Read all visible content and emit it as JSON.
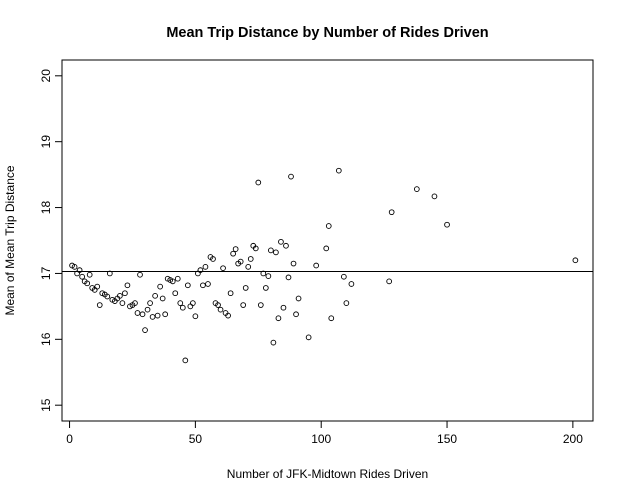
{
  "chart_data": {
    "type": "scatter",
    "title": "Mean Trip Distance by Number of Rides Driven",
    "xlabel": "Number of JFK-Midtown Rides Driven",
    "ylabel": "Mean of Mean Trip Distance",
    "xlim": [
      -3,
      208
    ],
    "ylim": [
      14.76,
      20.24
    ],
    "xticks": [
      0,
      50,
      100,
      150,
      200
    ],
    "yticks": [
      15,
      16,
      17,
      18,
      19,
      20
    ],
    "hline": 17.03,
    "grid": false,
    "legend": "none",
    "marker": "open-circle",
    "points": [
      [
        1,
        17.12
      ],
      [
        2,
        17.1
      ],
      [
        3,
        17.0
      ],
      [
        4,
        17.05
      ],
      [
        5,
        16.95
      ],
      [
        6,
        16.88
      ],
      [
        7,
        16.85
      ],
      [
        8,
        16.98
      ],
      [
        9,
        16.78
      ],
      [
        10,
        16.75
      ],
      [
        11,
        16.8
      ],
      [
        12,
        16.52
      ],
      [
        13,
        16.7
      ],
      [
        14,
        16.68
      ],
      [
        15,
        16.65
      ],
      [
        16,
        17.0
      ],
      [
        17,
        16.6
      ],
      [
        18,
        16.58
      ],
      [
        19,
        16.62
      ],
      [
        20,
        16.66
      ],
      [
        21,
        16.55
      ],
      [
        22,
        16.7
      ],
      [
        23,
        16.82
      ],
      [
        24,
        16.5
      ],
      [
        25,
        16.52
      ],
      [
        26,
        16.55
      ],
      [
        27,
        16.4
      ],
      [
        28,
        16.98
      ],
      [
        29,
        16.38
      ],
      [
        30,
        16.14
      ],
      [
        31,
        16.45
      ],
      [
        32,
        16.55
      ],
      [
        33,
        16.34
      ],
      [
        34,
        16.66
      ],
      [
        35,
        16.36
      ],
      [
        36,
        16.8
      ],
      [
        37,
        16.62
      ],
      [
        38,
        16.38
      ],
      [
        39,
        16.92
      ],
      [
        40,
        16.9
      ],
      [
        41,
        16.88
      ],
      [
        42,
        16.7
      ],
      [
        43,
        16.92
      ],
      [
        44,
        16.55
      ],
      [
        45,
        16.48
      ],
      [
        46,
        15.68
      ],
      [
        47,
        16.82
      ],
      [
        48,
        16.5
      ],
      [
        49,
        16.55
      ],
      [
        50,
        16.35
      ],
      [
        51,
        17.0
      ],
      [
        52,
        17.05
      ],
      [
        53,
        16.82
      ],
      [
        54,
        17.1
      ],
      [
        55,
        16.84
      ],
      [
        56,
        17.25
      ],
      [
        57,
        17.22
      ],
      [
        58,
        16.55
      ],
      [
        59,
        16.52
      ],
      [
        60,
        16.45
      ],
      [
        61,
        17.08
      ],
      [
        62,
        16.4
      ],
      [
        63,
        16.36
      ],
      [
        64,
        16.7
      ],
      [
        65,
        17.3
      ],
      [
        66,
        17.37
      ],
      [
        67,
        17.15
      ],
      [
        68,
        17.18
      ],
      [
        69,
        16.52
      ],
      [
        70,
        16.78
      ],
      [
        71,
        17.1
      ],
      [
        72,
        17.22
      ],
      [
        73,
        17.42
      ],
      [
        74,
        17.38
      ],
      [
        75,
        18.38
      ],
      [
        76,
        16.52
      ],
      [
        77,
        17.0
      ],
      [
        78,
        16.78
      ],
      [
        79,
        16.96
      ],
      [
        80,
        17.35
      ],
      [
        81,
        15.95
      ],
      [
        82,
        17.32
      ],
      [
        83,
        16.32
      ],
      [
        84,
        17.48
      ],
      [
        85,
        16.48
      ],
      [
        86,
        17.42
      ],
      [
        87,
        16.94
      ],
      [
        88,
        18.47
      ],
      [
        89,
        17.15
      ],
      [
        90,
        16.38
      ],
      [
        91,
        16.62
      ],
      [
        95,
        16.03
      ],
      [
        98,
        17.12
      ],
      [
        102,
        17.38
      ],
      [
        103,
        17.72
      ],
      [
        104,
        16.32
      ],
      [
        107,
        18.56
      ],
      [
        109,
        16.95
      ],
      [
        110,
        16.55
      ],
      [
        112,
        16.84
      ],
      [
        127,
        16.88
      ],
      [
        128,
        17.93
      ],
      [
        138,
        18.28
      ],
      [
        145,
        18.17
      ],
      [
        150,
        17.74
      ],
      [
        201,
        17.2
      ]
    ]
  }
}
